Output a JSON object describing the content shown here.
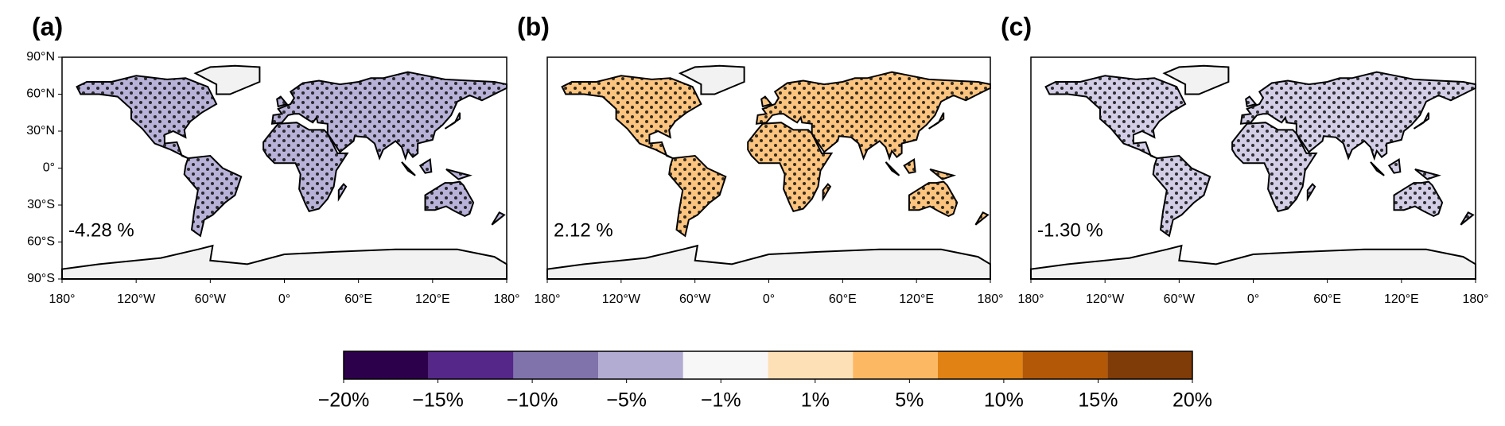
{
  "panels": [
    {
      "label": "(a)",
      "annotation": "-4.28 %",
      "color": "#b9b2d8"
    },
    {
      "label": "(b)",
      "annotation": "2.12 %",
      "color": "#fcc47e"
    },
    {
      "label": "(c)",
      "annotation": "-1.30 %",
      "color": "#d3cee6"
    }
  ],
  "lat_ticks": [
    "90°N",
    "60°N",
    "30°N",
    "0°",
    "30°S",
    "60°S",
    "90°S"
  ],
  "lon_ticks": [
    "180°",
    "120°W",
    "60°W",
    "0°",
    "60°E",
    "120°E",
    "180°"
  ],
  "colorbar": {
    "colors": [
      "#2d004b",
      "#542788",
      "#8073ac",
      "#b2abd2",
      "#f7f7f7",
      "#fee0b6",
      "#fdb863",
      "#e08214",
      "#b35806",
      "#7f3b08"
    ],
    "ticks": [
      "−20%",
      "−15%",
      "−10%",
      "−5%",
      "−1%",
      "1%",
      "5%",
      "10%",
      "15%",
      "20%"
    ]
  }
}
